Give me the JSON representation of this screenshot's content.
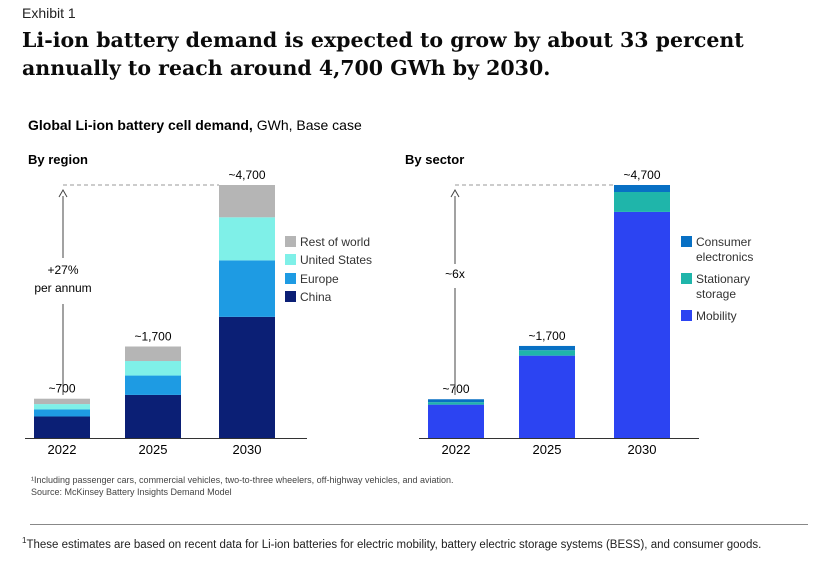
{
  "exhibit_label": "Exhibit 1",
  "headline": "Li-ion battery demand is expected to grow by about 33 percent annually to reach around 4,700 GWh by 2030.",
  "chart_title_bold": "Global Li-ion battery cell demand,",
  "chart_title_rest": " GWh, Base case",
  "colors": {
    "china": "#0b1f75",
    "europe": "#1e9be3",
    "us": "#7ff0e8",
    "row": "#b5b5b5",
    "mobility": "#2c44f2",
    "stationary": "#1fb5aa",
    "consumer": "#0870c4",
    "axis": "#333333",
    "dashed": "#999999"
  },
  "chart_data": [
    {
      "type": "bar",
      "stacked": true,
      "subtitle": "By region",
      "categories": [
        "2022",
        "2025",
        "2030"
      ],
      "series": [
        {
          "name": "China",
          "color_key": "china",
          "values": [
            400,
            800,
            2250
          ]
        },
        {
          "name": "Europe",
          "color_key": "europe",
          "values": [
            130,
            360,
            1050
          ]
        },
        {
          "name": "United States",
          "color_key": "us",
          "values": [
            100,
            270,
            800
          ]
        },
        {
          "name": "Rest of world",
          "color_key": "row",
          "values": [
            100,
            270,
            600
          ]
        }
      ],
      "totals": [
        "~700",
        "~1,700",
        "~4,700"
      ],
      "legend_order": [
        "Rest of world",
        "United States",
        "Europe",
        "China"
      ],
      "annotation": "+27%\nper annum",
      "ymax": 4700
    },
    {
      "type": "bar",
      "stacked": true,
      "subtitle": "By sector",
      "categories": [
        "2022",
        "2025",
        "2030"
      ],
      "series": [
        {
          "name": "Mobility",
          "color_key": "mobility",
          "values": [
            620,
            1530,
            4200
          ]
        },
        {
          "name": "Stationary storage",
          "color_key": "stationary",
          "values": [
            45,
            100,
            370
          ]
        },
        {
          "name": "Consumer electronics",
          "color_key": "consumer",
          "values": [
            55,
            80,
            130
          ]
        }
      ],
      "totals": [
        "~700",
        "~1,700",
        "~4,700"
      ],
      "legend_order": [
        "Consumer electronics",
        "Stationary storage",
        "Mobility"
      ],
      "legend_lines": [
        [
          "Consumer",
          "electronics"
        ],
        [
          "Stationary",
          "storage"
        ],
        [
          "Mobility"
        ]
      ],
      "annotation": "~6x",
      "ymax": 4700
    }
  ],
  "footnote_source_1": "¹Including passenger cars, commercial vehicles, two-to-three wheelers, off-highway vehicles, and aviation.",
  "footnote_source_2": "Source: McKinsey Battery Insights Demand Model",
  "footnote_main_sup": "1",
  "footnote_main": "These estimates are based on recent data for Li-ion batteries for electric mobility, battery electric storage systems (BESS), and consumer goods."
}
